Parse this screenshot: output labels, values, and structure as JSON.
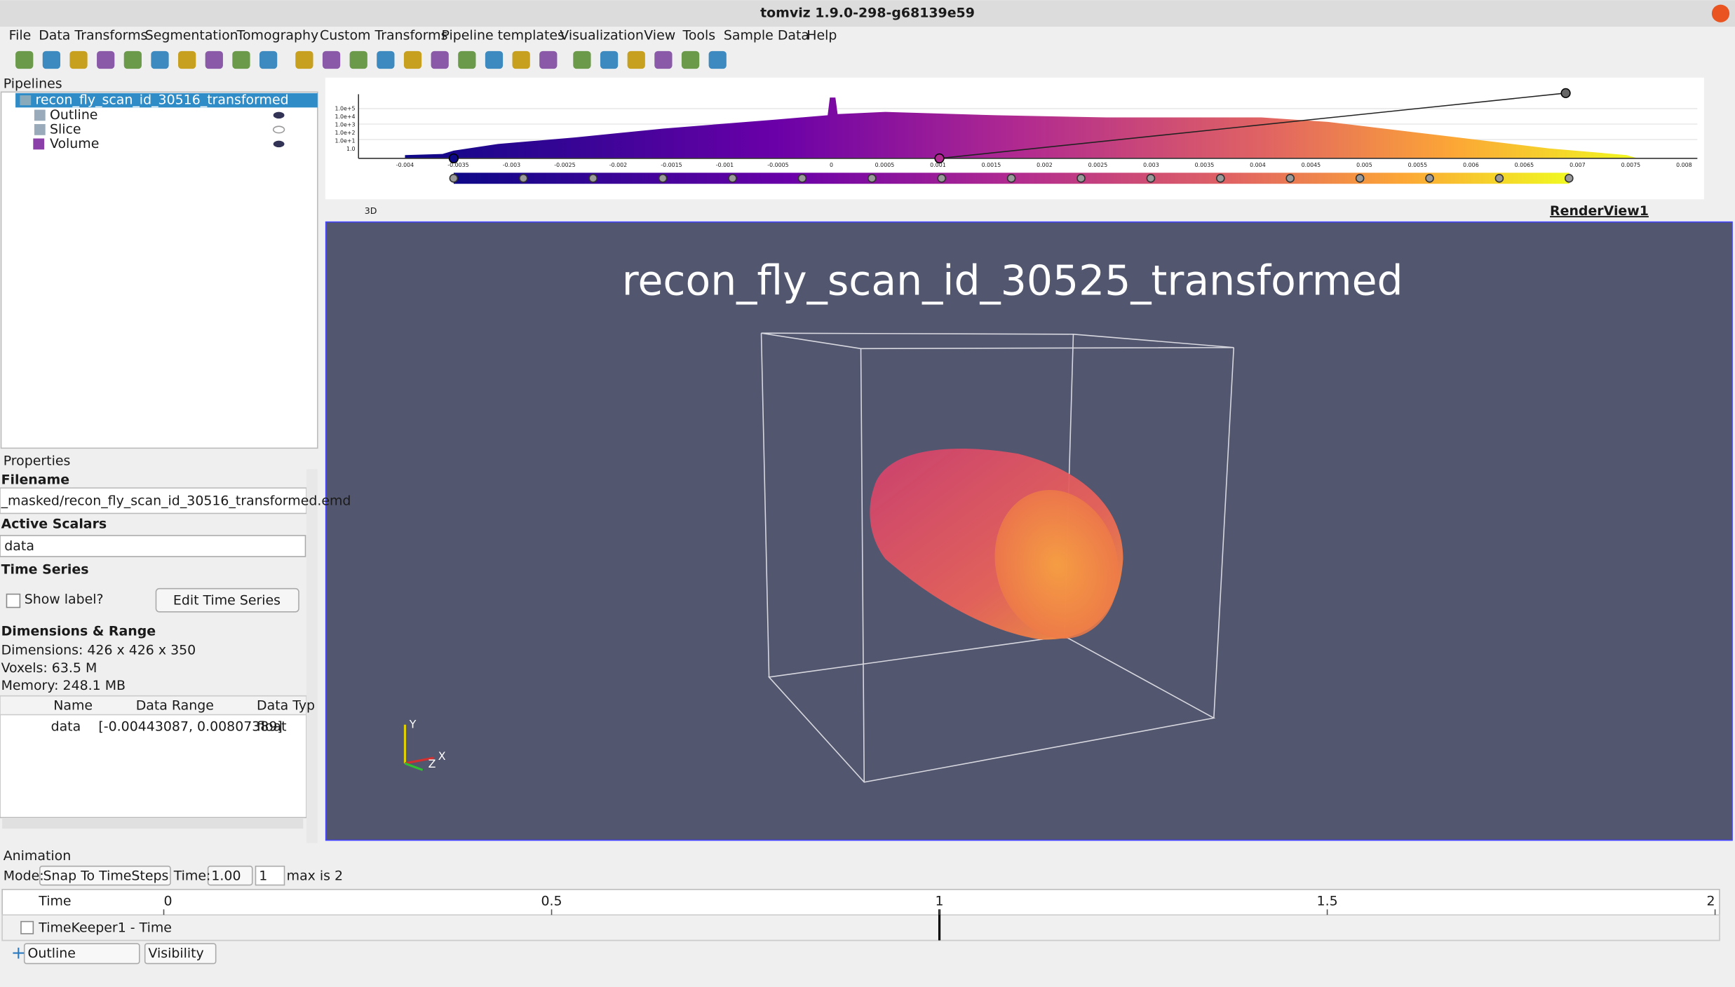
{
  "window": {
    "title": "tomviz 1.9.0-298-g68139e59"
  },
  "menu": [
    "File",
    "Data Transforms",
    "Segmentation",
    "Tomography",
    "Custom Transforms",
    "Pipeline templates",
    "Visualization",
    "View",
    "Tools",
    "Sample Data",
    "Help"
  ],
  "pipelines": {
    "title": "Pipelines",
    "root": "recon_fly_scan_id_30516_transformed",
    "children": [
      "Outline",
      "Slice",
      "Volume"
    ]
  },
  "histogram": {
    "x_tick_labels": [
      "-0.004",
      "-0.0035",
      "-0.003",
      "-0.0025",
      "-0.002",
      "-0.0015",
      "-0.001",
      "-0.0005",
      "0",
      "0.0005",
      "0.001",
      "0.0015",
      "0.002",
      "0.0025",
      "0.003",
      "0.0035",
      "0.004",
      "0.0045",
      "0.005",
      "0.0055",
      "0.006",
      "0.0065",
      "0.007",
      "0.0075",
      "0.008"
    ],
    "y_tick_labels": [
      "1.0e+5",
      "1.0e+4",
      "1.0e+3",
      "1.0e+2",
      "1.0e+1",
      "1.0"
    ]
  },
  "properties": {
    "title": "Properties",
    "filename_label": "Filename",
    "filename": "_masked/recon_fly_scan_id_30516_transformed.emd",
    "scalars_label": "Active Scalars",
    "scalars": "data",
    "time_series_label": "Time Series",
    "show_label": "Show label?",
    "edit_button": "Edit Time Series",
    "dims_label": "Dimensions & Range",
    "dimensions": "Dimensions: 426 x 426 x 350",
    "voxels": "Voxels: 63.5 M",
    "memory": "Memory: 248.1 MB",
    "table": {
      "headers": [
        "Name",
        "Data Range",
        "Data Typ"
      ],
      "row": [
        "data",
        "[-0.00443087, 0.00807389]",
        "float"
      ]
    }
  },
  "render_view": {
    "toolbar_label": "3D",
    "name": "RenderView1",
    "title": "recon_fly_scan_id_30525_transformed",
    "axes": [
      "Y",
      "Z",
      "X"
    ]
  },
  "animation": {
    "title": "Animation",
    "mode_label": "Mode:",
    "mode": "Snap To TimeSteps",
    "time_label": "Time:",
    "time": "1.00",
    "step": "1",
    "max": "max is 2",
    "header": "Time",
    "ticks": [
      0,
      0.5,
      1,
      1.5,
      2
    ],
    "track": "TimeKeeper1 - Time",
    "source": "Outline",
    "property": "Visibility"
  }
}
